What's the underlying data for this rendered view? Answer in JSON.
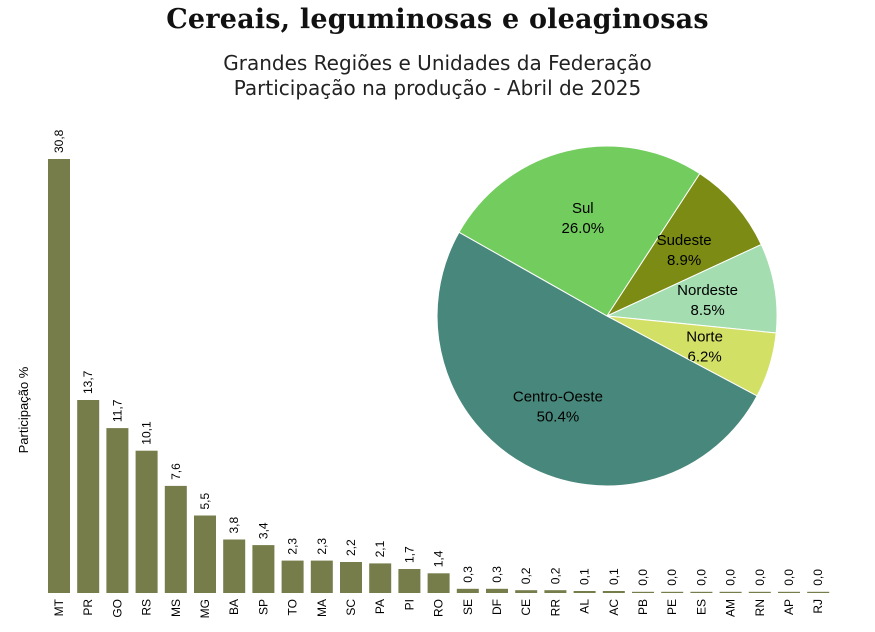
{
  "chart_data": [
    {
      "type": "bar",
      "title": "Cereais, leguminosas e oleaginosas",
      "subtitle": [
        "Grandes Regiões e Unidades da Federação",
        "Participação na produção - Abril de 2025"
      ],
      "ylabel": "Participação %",
      "xlabel": "",
      "color": "#767d4a",
      "categories": [
        "MT",
        "PR",
        "GO",
        "RS",
        "MS",
        "MG",
        "BA",
        "SP",
        "TO",
        "MA",
        "SC",
        "PA",
        "PI",
        "RO",
        "SE",
        "DF",
        "CE",
        "RR",
        "AL",
        "AC",
        "PB",
        "PE",
        "ES",
        "AM",
        "RN",
        "AP",
        "RJ"
      ],
      "values": [
        30.8,
        13.7,
        11.7,
        10.1,
        7.6,
        5.5,
        3.8,
        3.4,
        2.3,
        2.3,
        2.2,
        2.1,
        1.7,
        1.4,
        0.3,
        0.3,
        0.2,
        0.2,
        0.1,
        0.1,
        0.0,
        0.0,
        0.0,
        0.0,
        0.0,
        0.0,
        0.0
      ],
      "value_labels": [
        "30,8",
        "13,7",
        "11,7",
        "10,1",
        "7,6",
        "5,5",
        "3,8",
        "3,4",
        "2,3",
        "2,3",
        "2,2",
        "2,1",
        "1,7",
        "1,4",
        "0,3",
        "0,3",
        "0,2",
        "0,2",
        "0,1",
        "0,1",
        "0,0",
        "0,0",
        "0,0",
        "0,0",
        "0,0",
        "0,0",
        "0,0"
      ]
    },
    {
      "type": "pie",
      "slices": [
        {
          "name": "Sul",
          "value": 26.0,
          "label": "26.0%",
          "color": "#72cc5e"
        },
        {
          "name": "Sudeste",
          "value": 8.9,
          "label": "8.9%",
          "color": "#7b8b14"
        },
        {
          "name": "Nordeste",
          "value": 8.5,
          "label": "8.5%",
          "color": "#a3ddb0"
        },
        {
          "name": "Norte",
          "value": 6.2,
          "label": "6.2%",
          "color": "#d3e066"
        },
        {
          "name": "Centro-Oeste",
          "value": 50.4,
          "label": "50.4%",
          "color": "#48877b"
        }
      ]
    }
  ]
}
